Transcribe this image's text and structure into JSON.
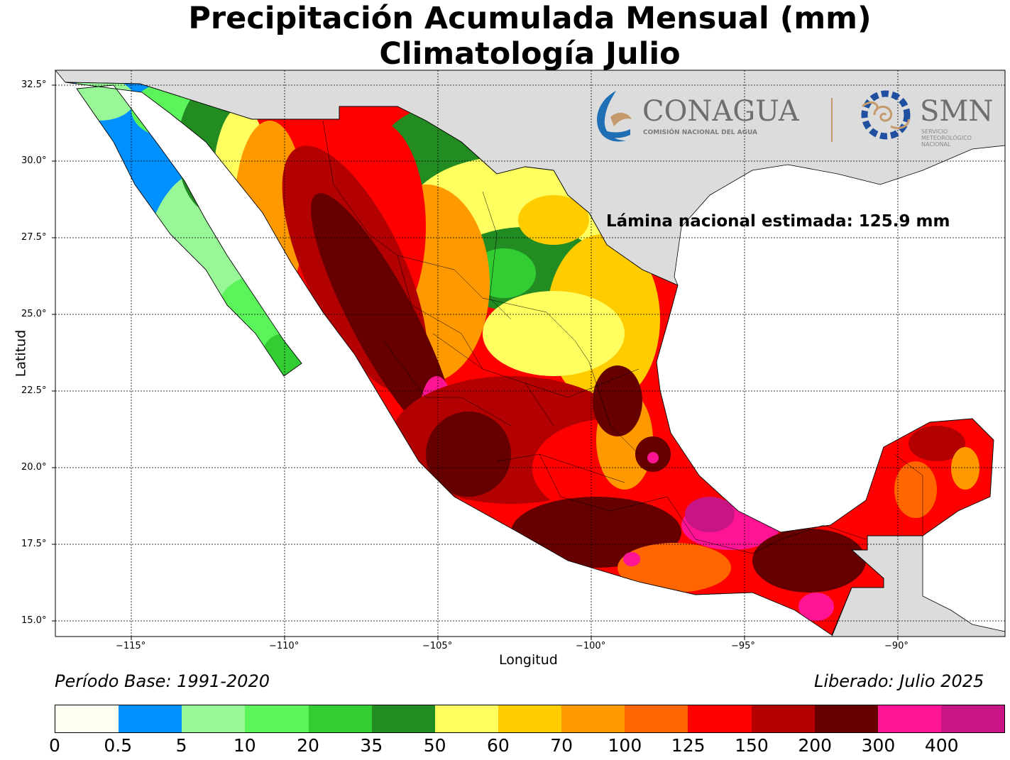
{
  "title_line1": "Precipitación Acumulada Mensual (mm)",
  "title_line2": "Climatología Julio",
  "annotation": "Lámina nacional estimada: 125.9 mm",
  "x_axis_label": "Longitud",
  "y_axis_label": "Latitud",
  "x_ticks": [
    "−115°",
    "−110°",
    "−105°",
    "−100°",
    "−95°",
    "−90°"
  ],
  "y_ticks": [
    "32.5°",
    "30.0°",
    "27.5°",
    "25.0°",
    "22.5°",
    "20.0°",
    "17.5°",
    "15.0°"
  ],
  "periodo": "Período Base: 1991-2020",
  "liberado": "Liberado: Julio 2025",
  "logos": {
    "conagua_name": "CONAGUA",
    "conagua_sub": "COMISIÓN NACIONAL DEL AGUA",
    "smn_name": "SMN",
    "smn_sub": [
      "SERVICIO",
      "METEOROLÓGICO",
      "NACIONAL"
    ]
  },
  "colorbar": {
    "labels": [
      "0",
      "0.5",
      "5",
      "10",
      "20",
      "35",
      "50",
      "60",
      "70",
      "100",
      "125",
      "150",
      "200",
      "300",
      "400"
    ],
    "colors": [
      "#fffff2",
      "#0090ff",
      "#98f898",
      "#5bf55b",
      "#32cd32",
      "#228b22",
      "#ffff60",
      "#ffcc00",
      "#ff9900",
      "#ff6600",
      "#ff0000",
      "#b30000",
      "#660000",
      "#ff1493",
      "#c71585"
    ]
  },
  "map": {
    "land_color": "#dcdcdc",
    "sea_color": "#ffffff"
  }
}
